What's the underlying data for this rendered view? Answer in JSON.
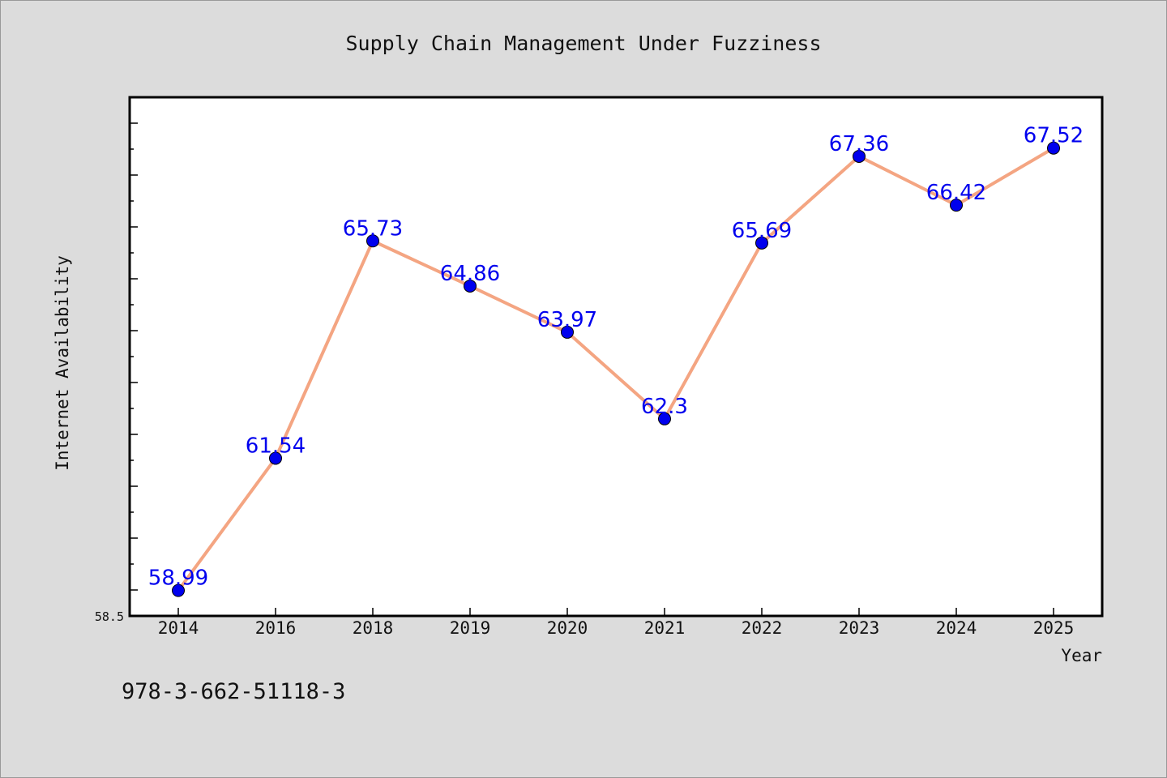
{
  "chart_data": {
    "type": "line",
    "title": "Supply Chain Management Under Fuzziness",
    "xlabel": "Year",
    "ylabel": "Internet Availability",
    "categories": [
      "2014",
      "2016",
      "2018",
      "2019",
      "2020",
      "2021",
      "2022",
      "2023",
      "2024",
      "2025"
    ],
    "series": [
      {
        "values": [
          58.99,
          61.54,
          65.73,
          64.86,
          63.97,
          62.3,
          65.69,
          67.36,
          66.42,
          67.52
        ],
        "labels": [
          "58.99",
          "61.54",
          "65.73",
          "64.86",
          "63.97",
          "62.3",
          "65.69",
          "67.36",
          "66.42",
          "67.52"
        ]
      }
    ],
    "ylim": [
      58.5,
      68.5
    ],
    "y_tick_labels": [
      "58.5"
    ],
    "grid": false,
    "line_color": "#f4a582",
    "marker_color": "#0000ee",
    "label_color": "#0000ee"
  },
  "footer_text": "978-3-662-51118-3"
}
